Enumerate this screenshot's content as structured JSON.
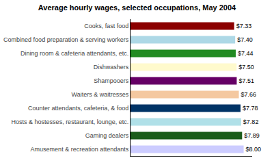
{
  "chart_data": {
    "type": "bar",
    "orientation": "horizontal",
    "title": "Average hourly wages, selected occupations, May 2004",
    "categories": [
      "Cooks, fast food",
      "Combined food preparation & serving workers",
      "Dining room & cafeteria attendants, etc.",
      "Dishwashers",
      "Shampooers",
      "Waiters & waitresses",
      "Counter attendants, cafeteria, & food",
      "Hosts & hostesses, restaurant, lounge, etc.",
      "Gaming dealers",
      "Amusement & recreation attendants"
    ],
    "values": [
      7.33,
      7.4,
      7.44,
      7.5,
      7.51,
      7.66,
      7.78,
      7.82,
      7.89,
      8.0
    ],
    "value_labels": [
      "$7.33",
      "$7.40",
      "$7.44",
      "$7.50",
      "$7.51",
      "$7.66",
      "$7.78",
      "$7.82",
      "$7.89",
      "$8.00"
    ],
    "data_labels": true,
    "colors": [
      "#8b0000",
      "#add8e6",
      "#228B22",
      "#fffacd",
      "#660066",
      "#f4c8a0",
      "#003366",
      "#b0e0e8",
      "#1a5c1a",
      "#ccccff"
    ],
    "xlim": [
      0,
      8.6
    ],
    "tick_labels": "y",
    "grid": false
  }
}
